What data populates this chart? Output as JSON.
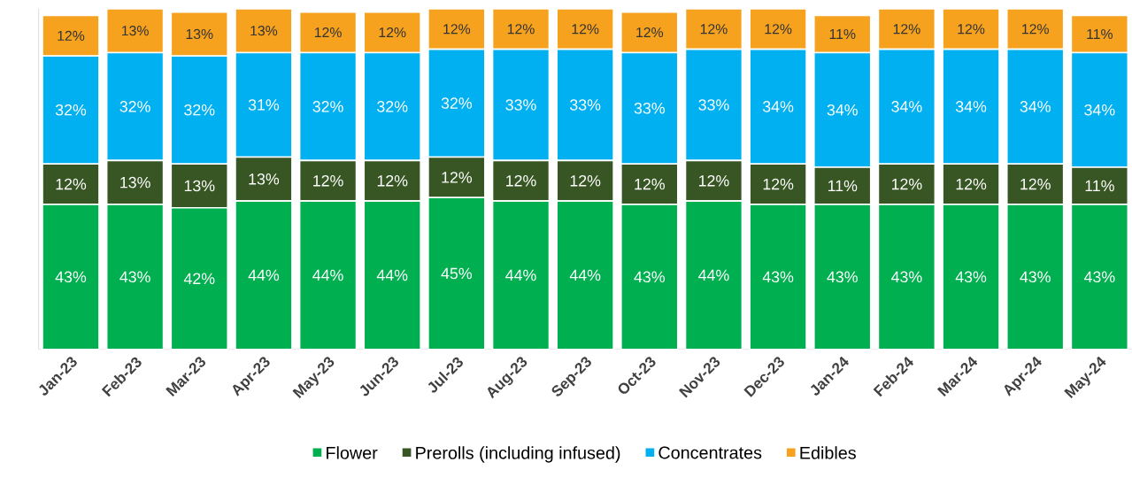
{
  "chart_data": {
    "type": "bar",
    "stacked": true,
    "tick_labels": "x",
    "legend": "bottom",
    "categories": [
      "Jan-23",
      "Feb-23",
      "Mar-23",
      "Apr-23",
      "May-23",
      "Jun-23",
      "Jul-23",
      "Aug-23",
      "Sep-23",
      "Oct-23",
      "Nov-23",
      "Dec-23",
      "Jan-24",
      "Feb-24",
      "Mar-24",
      "Apr-24",
      "May-24"
    ],
    "series": [
      {
        "name": "Flower",
        "color": "#00b050",
        "values": [
          43,
          43,
          42,
          44,
          44,
          44,
          45,
          44,
          44,
          43,
          44,
          43,
          43,
          43,
          43,
          43,
          43
        ],
        "value_labels": [
          "43%",
          "43%",
          "42%",
          "44%",
          "44%",
          "44%",
          "45%",
          "44%",
          "44%",
          "43%",
          "44%",
          "43%",
          "43%",
          "43%",
          "43%",
          "43%",
          "43%"
        ]
      },
      {
        "name": "Prerolls (including infused)",
        "color": "#375623",
        "values": [
          12,
          13,
          13,
          13,
          12,
          12,
          12,
          12,
          12,
          12,
          12,
          12,
          11,
          12,
          12,
          12,
          11
        ],
        "value_labels": [
          "12%",
          "13%",
          "13%",
          "13%",
          "12%",
          "12%",
          "12%",
          "12%",
          "12%",
          "12%",
          "12%",
          "12%",
          "11%",
          "12%",
          "12%",
          "12%",
          "11%"
        ]
      },
      {
        "name": "Concentrates",
        "color": "#00b0f0",
        "values": [
          32,
          32,
          32,
          31,
          32,
          32,
          32,
          33,
          33,
          33,
          33,
          34,
          34,
          34,
          34,
          34,
          34
        ],
        "value_labels": [
          "32%",
          "32%",
          "32%",
          "31%",
          "32%",
          "32%",
          "32%",
          "33%",
          "33%",
          "33%",
          "33%",
          "34%",
          "34%",
          "34%",
          "34%",
          "34%",
          "34%"
        ]
      },
      {
        "name": "Edibles",
        "color": "#f6a21e",
        "values": [
          12,
          13,
          13,
          13,
          12,
          12,
          12,
          12,
          12,
          12,
          12,
          12,
          11,
          12,
          12,
          12,
          11
        ],
        "value_labels": [
          "12%",
          "13%",
          "13%",
          "13%",
          "12%",
          "12%",
          "12%",
          "12%",
          "12%",
          "12%",
          "12%",
          "12%",
          "11%",
          "12%",
          "12%",
          "12%",
          "11%"
        ]
      }
    ]
  }
}
